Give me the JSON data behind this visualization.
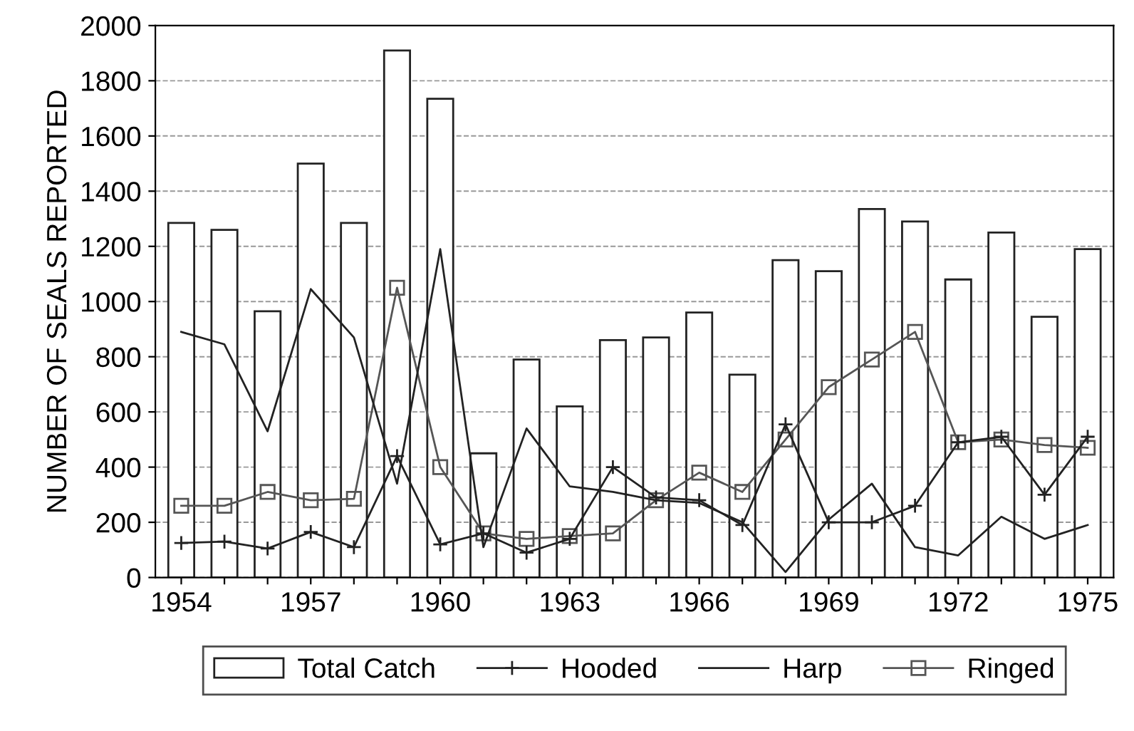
{
  "chart_data": {
    "type": "bar",
    "ylabel": "NUMBER OF SEALS REPORTED",
    "categories": [
      "1954",
      null,
      null,
      "1957",
      null,
      null,
      "1960",
      null,
      null,
      "1963",
      null,
      null,
      "1966",
      null,
      null,
      "1969",
      null,
      null,
      "1972",
      null,
      null,
      "1975"
    ],
    "series": [
      {
        "name": "Total Catch",
        "color": "#ffffff",
        "values": [
          1285,
          1260,
          965,
          1500,
          1285,
          1910,
          1735,
          450,
          790,
          620,
          860,
          870,
          960,
          735,
          1150,
          1110,
          1335,
          1290,
          1080,
          1250,
          945,
          1190
        ]
      },
      {
        "name": "Hooded",
        "type": "line",
        "marker": "cross",
        "color": "#222222",
        "values": [
          125,
          130,
          105,
          165,
          110,
          440,
          120,
          160,
          90,
          140,
          400,
          290,
          280,
          190,
          555,
          200,
          200,
          260,
          490,
          510,
          300,
          510
        ]
      },
      {
        "name": "Harp",
        "type": "line",
        "marker": "none",
        "color": "#222222",
        "values": [
          890,
          845,
          530,
          1045,
          870,
          340,
          1190,
          110,
          540,
          330,
          310,
          280,
          270,
          200,
          20,
          210,
          340,
          110,
          80,
          220,
          140,
          190
        ]
      },
      {
        "name": "Ringed",
        "type": "line",
        "marker": "square",
        "color": "#555555",
        "values": [
          260,
          260,
          310,
          280,
          285,
          1050,
          400,
          160,
          140,
          150,
          160,
          280,
          380,
          310,
          500,
          690,
          790,
          890,
          490,
          500,
          480,
          470
        ]
      }
    ],
    "ylim": [
      0,
      2000
    ],
    "yticks": [
      0,
      200,
      400,
      600,
      800,
      1000,
      1200,
      1400,
      1600,
      1800,
      2000
    ],
    "grid": "y",
    "legend": "bottom"
  }
}
